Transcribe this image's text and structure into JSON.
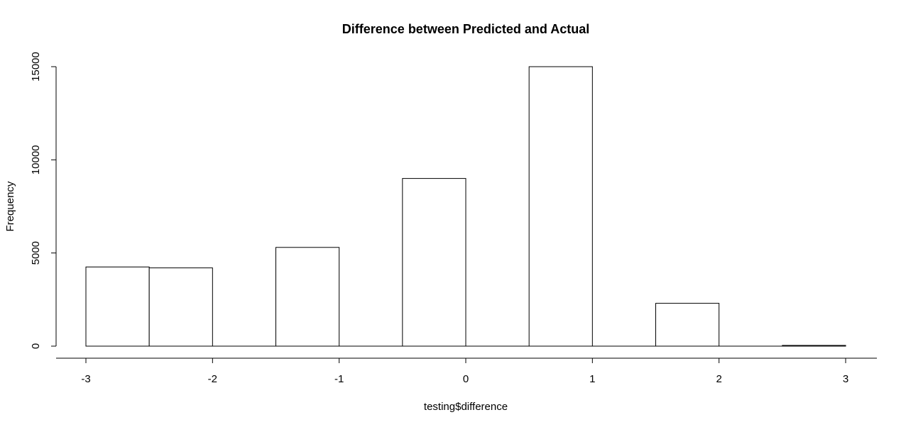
{
  "chart_data": {
    "type": "bar",
    "title": "Difference between Predicted and Actual",
    "xlabel": "testing$difference",
    "ylabel": "Frequency",
    "bins": [
      {
        "start": -3.0,
        "end": -2.5,
        "count": 4250
      },
      {
        "start": -2.5,
        "end": -2.0,
        "count": 4200
      },
      {
        "start": -2.0,
        "end": -1.5,
        "count": 0
      },
      {
        "start": -1.5,
        "end": -1.0,
        "count": 5300
      },
      {
        "start": -1.0,
        "end": -0.5,
        "count": 0
      },
      {
        "start": -0.5,
        "end": 0.0,
        "count": 9000
      },
      {
        "start": 0.0,
        "end": 0.5,
        "count": 0
      },
      {
        "start": 0.5,
        "end": 1.0,
        "count": 15000
      },
      {
        "start": 1.0,
        "end": 1.5,
        "count": 0
      },
      {
        "start": 1.5,
        "end": 2.0,
        "count": 2300
      },
      {
        "start": 2.0,
        "end": 2.5,
        "count": 0
      },
      {
        "start": 2.5,
        "end": 3.0,
        "count": 40
      }
    ],
    "xlim": [
      -3,
      3
    ],
    "ylim": [
      0,
      15000
    ],
    "x_ticks": [
      "-3",
      "-2",
      "-1",
      "0",
      "1",
      "2",
      "3"
    ],
    "y_ticks": [
      "0",
      "5000",
      "10000",
      "15000"
    ],
    "grid": false,
    "legend": "none"
  }
}
